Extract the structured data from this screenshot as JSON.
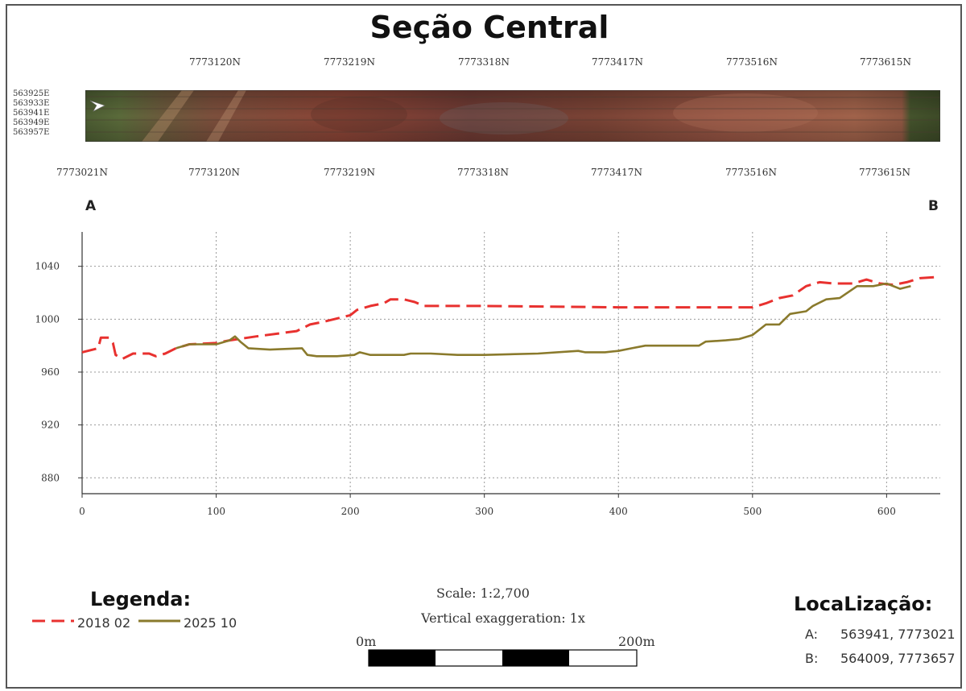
{
  "title": "Seção Central",
  "map_strip": {
    "top_labels": [
      "7773120N",
      "7773219N",
      "7773318N",
      "7773417N",
      "7773516N",
      "7773615N"
    ],
    "bottom_labels": [
      "7773021N",
      "7773120N",
      "7773219N",
      "7773318N",
      "7773417N",
      "7773516N",
      "7773615N"
    ],
    "left_labels": [
      "563925E",
      "563933E",
      "563941E",
      "563949E",
      "563957E"
    ],
    "icon": "north-arrow-icon"
  },
  "endpoints": {
    "start": "A",
    "end": "B"
  },
  "chart_data": {
    "type": "line",
    "title": "Seção Central",
    "xlabel": "",
    "ylabel": "",
    "xlim": [
      0,
      640
    ],
    "ylim": [
      868,
      1066
    ],
    "x_ticks": [
      0,
      100,
      200,
      300,
      400,
      500,
      600
    ],
    "y_ticks": [
      880,
      920,
      960,
      1000,
      1040
    ],
    "x_tick_labels": [
      "0",
      "100",
      "200",
      "300",
      "400",
      "500",
      "600"
    ],
    "y_tick_labels": [
      "880",
      "920",
      "960",
      "1000",
      "1040"
    ],
    "grid": true,
    "series": [
      {
        "name": "2018 02",
        "color": "#e8312f",
        "style": "dashed",
        "points": [
          [
            0,
            975
          ],
          [
            12,
            978
          ],
          [
            14,
            986
          ],
          [
            20,
            986
          ],
          [
            23,
            982
          ],
          [
            25,
            973
          ],
          [
            30,
            970
          ],
          [
            38,
            974
          ],
          [
            50,
            974
          ],
          [
            55,
            972
          ],
          [
            62,
            974
          ],
          [
            70,
            978
          ],
          [
            80,
            981
          ],
          [
            100,
            982
          ],
          [
            110,
            984
          ],
          [
            130,
            987
          ],
          [
            160,
            991
          ],
          [
            170,
            996
          ],
          [
            180,
            998
          ],
          [
            200,
            1003
          ],
          [
            205,
            1007
          ],
          [
            215,
            1010
          ],
          [
            225,
            1012
          ],
          [
            230,
            1015
          ],
          [
            240,
            1015
          ],
          [
            248,
            1013
          ],
          [
            255,
            1010
          ],
          [
            300,
            1010
          ],
          [
            400,
            1009
          ],
          [
            500,
            1009
          ],
          [
            510,
            1012
          ],
          [
            520,
            1016
          ],
          [
            530,
            1018
          ],
          [
            540,
            1025
          ],
          [
            550,
            1028
          ],
          [
            560,
            1027
          ],
          [
            575,
            1027
          ],
          [
            585,
            1030
          ],
          [
            595,
            1027
          ],
          [
            605,
            1026
          ],
          [
            615,
            1028
          ],
          [
            625,
            1031
          ],
          [
            640,
            1032
          ]
        ]
      },
      {
        "name": "2025 10",
        "color": "#8a7a2c",
        "style": "solid",
        "points": [
          [
            70,
            978
          ],
          [
            80,
            981
          ],
          [
            100,
            981
          ],
          [
            110,
            984
          ],
          [
            114,
            987
          ],
          [
            118,
            983
          ],
          [
            124,
            978
          ],
          [
            140,
            977
          ],
          [
            164,
            978
          ],
          [
            168,
            973
          ],
          [
            175,
            972
          ],
          [
            190,
            972
          ],
          [
            203,
            973
          ],
          [
            207,
            975
          ],
          [
            215,
            973
          ],
          [
            240,
            973
          ],
          [
            245,
            974
          ],
          [
            260,
            974
          ],
          [
            280,
            973
          ],
          [
            300,
            973
          ],
          [
            340,
            974
          ],
          [
            370,
            976
          ],
          [
            375,
            975
          ],
          [
            390,
            975
          ],
          [
            400,
            976
          ],
          [
            410,
            978
          ],
          [
            420,
            980
          ],
          [
            460,
            980
          ],
          [
            465,
            983
          ],
          [
            480,
            984
          ],
          [
            490,
            985
          ],
          [
            500,
            988
          ],
          [
            505,
            992
          ],
          [
            510,
            996
          ],
          [
            520,
            996
          ],
          [
            528,
            1004
          ],
          [
            540,
            1006
          ],
          [
            545,
            1010
          ],
          [
            555,
            1015
          ],
          [
            565,
            1016
          ],
          [
            578,
            1025
          ],
          [
            590,
            1025
          ],
          [
            600,
            1027
          ],
          [
            610,
            1023
          ],
          [
            618,
            1025
          ]
        ]
      }
    ]
  },
  "legend": {
    "title": "Legenda:",
    "items": [
      {
        "label": "2018 02",
        "color": "#e8312f",
        "style": "dashed"
      },
      {
        "label": "2025 10",
        "color": "#8a7a2c",
        "style": "solid"
      }
    ]
  },
  "scale": {
    "ratio": "Scale: 1:2,700",
    "exaggeration": "Vertical exaggeration: 1x",
    "bar_start": "0m",
    "bar_end": "200m"
  },
  "location": {
    "title": "LocaLização:",
    "a_key": "A:",
    "a_value": "563941, 7773021",
    "b_key": "B:",
    "b_value": "564009, 7773657"
  }
}
